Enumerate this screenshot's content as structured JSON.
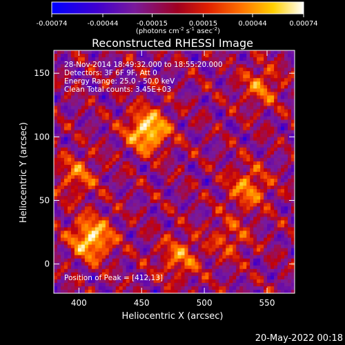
{
  "chart_data": {
    "type": "heatmap",
    "title": "Reconstructed RHESSI Image",
    "xlabel": "Heliocentric X (arcsec)",
    "ylabel": "Heliocentric Y (arcsec)",
    "xlim": [
      380,
      572
    ],
    "ylim": [
      -23,
      168
    ],
    "x_ticks": [
      400,
      450,
      500,
      550
    ],
    "y_ticks": [
      0,
      50,
      100,
      150
    ],
    "colorbar": {
      "range": [
        -0.00074,
        0.00074
      ],
      "tick_values": [
        -0.00074,
        -0.00044,
        -0.00015,
        0.00015,
        0.00044,
        0.00074
      ],
      "tick_labels": [
        "-0.00074",
        "-0.00044",
        "-0.00015",
        "0.00015",
        "0.00044",
        "0.00074"
      ],
      "units_label": "(photons cm",
      "units_exp1": "-2",
      "units_mid": " s",
      "units_exp2": "-1",
      "units_tail": " asec",
      "units_exp3": "-2",
      "units_close": ")"
    },
    "annotations": [
      "28-Nov-2014 18:49:32.000 to 18:55:20.000",
      "Detectors: 3F 6F 9F, Att 0",
      "Energy Range: 25.0 - 50.0 keV",
      "Clean     Total counts: 3.45E+03"
    ],
    "peak_label": "Position of Peak = [412,13]",
    "peak_position": [
      412,
      13
    ],
    "bright_sources": [
      {
        "x": 455,
        "y": 105,
        "intensity": 1.0
      },
      {
        "x": 410,
        "y": 20,
        "intensity": 0.95
      },
      {
        "x": 480,
        "y": 5,
        "intensity": 0.55
      },
      {
        "x": 535,
        "y": 60,
        "intensity": 0.6
      },
      {
        "x": 545,
        "y": 140,
        "intensity": 0.5
      },
      {
        "x": 398,
        "y": 70,
        "intensity": 0.5
      },
      {
        "x": 520,
        "y": 20,
        "intensity": 0.4
      }
    ],
    "colors": [
      "#0000ff",
      "#5a00b4",
      "#7a1a9a",
      "#c0000a",
      "#ff5a00",
      "#ffc000",
      "#ffffff"
    ]
  },
  "footer": {
    "timestamp": "20-May-2022 00:18"
  }
}
